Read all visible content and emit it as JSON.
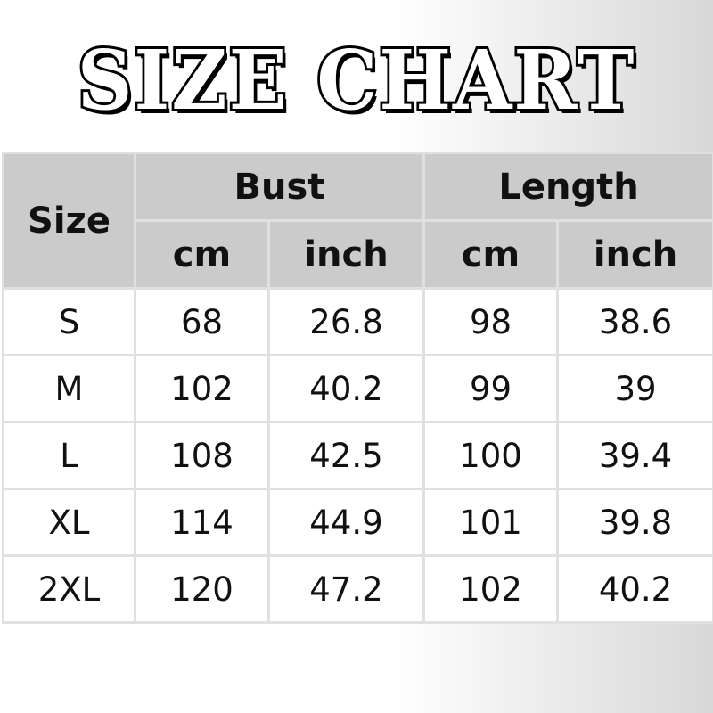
{
  "title": "SIZE CHART",
  "headers": {
    "size": "Size",
    "bust": "Bust",
    "length": "Length",
    "cm": "cm",
    "inch": "inch"
  },
  "rows": [
    [
      "S",
      "68",
      "26.8",
      "98",
      "38.6"
    ],
    [
      "M",
      "102",
      "40.2",
      "99",
      "39"
    ],
    [
      "L",
      "108",
      "42.5",
      "100",
      "39.4"
    ],
    [
      "XL",
      "114",
      "44.9",
      "101",
      "39.8"
    ],
    [
      "2XL",
      "120",
      "47.2",
      "102",
      "40.2"
    ]
  ]
}
